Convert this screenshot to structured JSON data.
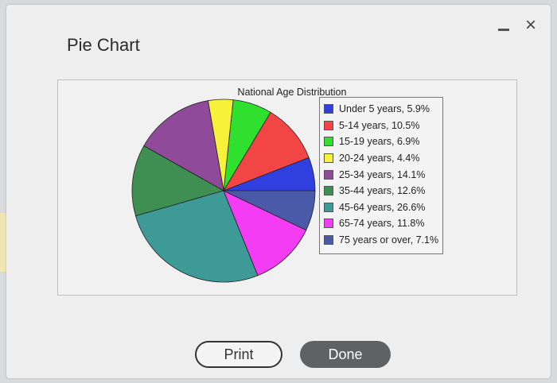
{
  "window": {
    "title": "Pie Chart",
    "minimize_label": "-",
    "close_label": "×"
  },
  "buttons": {
    "print_label": "Print",
    "done_label": "Done"
  },
  "chart_data": {
    "type": "pie",
    "title": "National Age Distribution",
    "legend_placement": "right",
    "slices": [
      {
        "label": "Under 5 years, 5.9%",
        "value": 5.9,
        "color": "#2f3fe0"
      },
      {
        "label": "5-14 years, 10.5%",
        "value": 10.5,
        "color": "#f24646"
      },
      {
        "label": "15-19 years, 6.9%",
        "value": 6.9,
        "color": "#2fe02f"
      },
      {
        "label": "20-24 years, 4.4%",
        "value": 4.4,
        "color": "#f7f13a"
      },
      {
        "label": "25-34 years, 14.1%",
        "value": 14.1,
        "color": "#8f4b9a"
      },
      {
        "label": "35-44 years, 12.6%",
        "value": 12.6,
        "color": "#3f8e52"
      },
      {
        "label": "45-64 years, 26.6%",
        "value": 26.6,
        "color": "#3e9a96"
      },
      {
        "label": "65-74 years, 11.8%",
        "value": 11.8,
        "color": "#f43cf4"
      },
      {
        "label": "75 years or over, 7.1%",
        "value": 7.1,
        "color": "#4a5aa8"
      }
    ]
  }
}
